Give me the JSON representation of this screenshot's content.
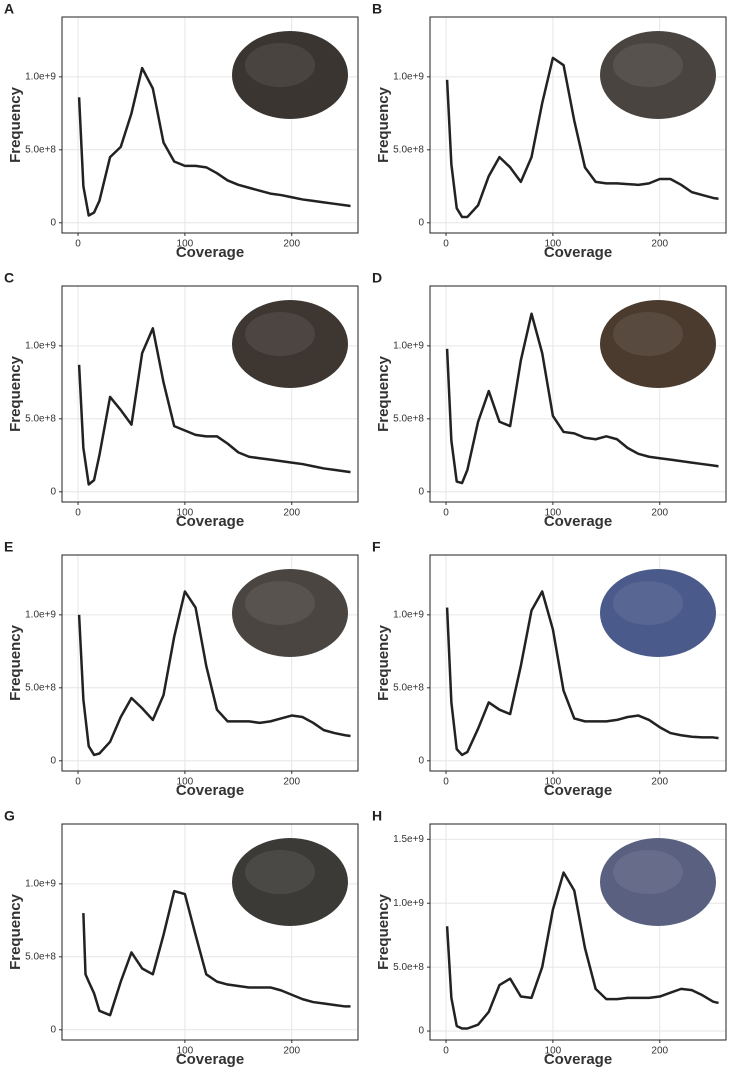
{
  "chart_data": [
    {
      "type": "line",
      "panel": "A",
      "xlabel": "Coverage",
      "ylabel": "Frequency",
      "color": "#222222",
      "grid": true,
      "x": [
        1,
        5,
        10,
        15,
        20,
        30,
        40,
        50,
        60,
        70,
        80,
        90,
        100,
        110,
        120,
        130,
        140,
        150,
        160,
        170,
        180,
        190,
        200,
        210,
        220,
        230,
        240,
        250,
        255
      ],
      "values": [
        860000000.0,
        250000000.0,
        50000000.0,
        70000000.0,
        150000000.0,
        450000000.0,
        520000000.0,
        750000000.0,
        1060000000.0,
        920000000.0,
        550000000.0,
        420000000.0,
        390000000.0,
        390000000.0,
        380000000.0,
        340000000.0,
        290000000.0,
        260000000.0,
        240000000.0,
        220000000.0,
        200000000.0,
        190000000.0,
        175000000.0,
        160000000.0,
        150000000.0,
        140000000.0,
        130000000.0,
        120000000.0,
        115000000.0
      ],
      "xlim": [
        -15,
        262
      ],
      "ylim": [
        -70000000.0,
        1410000000.0
      ],
      "xticks": [
        0,
        100,
        200
      ],
      "yticks": [
        0,
        {
          "value": 500000000,
          "label": "5.0e+8"
        },
        {
          "value": 1000000000,
          "label": "1.0e+9"
        }
      ]
    },
    {
      "type": "line",
      "panel": "B",
      "xlabel": "Coverage",
      "ylabel": "Frequency",
      "color": "#222222",
      "grid": true,
      "x": [
        1,
        5,
        10,
        15,
        20,
        30,
        40,
        50,
        60,
        70,
        80,
        90,
        100,
        110,
        120,
        130,
        140,
        150,
        160,
        170,
        180,
        190,
        200,
        210,
        220,
        230,
        240,
        250,
        255
      ],
      "values": [
        980000000.0,
        400000000.0,
        100000000.0,
        40000000.0,
        40000000.0,
        120000000.0,
        320000000.0,
        450000000.0,
        380000000.0,
        280000000.0,
        450000000.0,
        820000000.0,
        1130000000.0,
        1080000000.0,
        700000000.0,
        380000000.0,
        280000000.0,
        270000000.0,
        270000000.0,
        265000000.0,
        260000000.0,
        270000000.0,
        300000000.0,
        300000000.0,
        260000000.0,
        210000000.0,
        190000000.0,
        170000000.0,
        165000000.0
      ],
      "xlim": [
        -15,
        262
      ],
      "ylim": [
        -70000000.0,
        1410000000.0
      ],
      "xticks": [
        0,
        100,
        200
      ],
      "yticks": [
        0,
        {
          "value": 500000000,
          "label": "5.0e+8"
        },
        {
          "value": 1000000000,
          "label": "1.0e+9"
        }
      ]
    },
    {
      "type": "line",
      "panel": "C",
      "xlabel": "Coverage",
      "ylabel": "Frequency",
      "color": "#222222",
      "grid": true,
      "x": [
        1,
        5,
        10,
        15,
        20,
        30,
        40,
        50,
        60,
        70,
        80,
        90,
        100,
        110,
        120,
        130,
        140,
        150,
        160,
        170,
        180,
        190,
        200,
        210,
        220,
        230,
        240,
        250,
        255
      ],
      "values": [
        870000000.0,
        300000000.0,
        50000000.0,
        80000000.0,
        250000000.0,
        650000000.0,
        560000000.0,
        460000000.0,
        950000000.0,
        1120000000.0,
        750000000.0,
        450000000.0,
        420000000.0,
        390000000.0,
        380000000.0,
        380000000.0,
        330000000.0,
        270000000.0,
        240000000.0,
        230000000.0,
        220000000.0,
        210000000.0,
        200000000.0,
        190000000.0,
        175000000.0,
        160000000.0,
        150000000.0,
        140000000.0,
        135000000.0
      ],
      "xlim": [
        -15,
        262
      ],
      "ylim": [
        -70000000.0,
        1410000000.0
      ],
      "xticks": [
        0,
        100,
        200
      ],
      "yticks": [
        0,
        {
          "value": 500000000,
          "label": "5.0e+8"
        },
        {
          "value": 1000000000,
          "label": "1.0e+9"
        }
      ]
    },
    {
      "type": "line",
      "panel": "D",
      "xlabel": "Coverage",
      "ylabel": "Frequency",
      "color": "#222222",
      "grid": true,
      "x": [
        1,
        5,
        10,
        15,
        20,
        30,
        40,
        50,
        60,
        70,
        80,
        90,
        100,
        110,
        120,
        130,
        140,
        150,
        160,
        170,
        180,
        190,
        200,
        210,
        220,
        230,
        240,
        250,
        255
      ],
      "values": [
        980000000.0,
        350000000.0,
        70000000.0,
        60000000.0,
        150000000.0,
        480000000.0,
        690000000.0,
        480000000.0,
        450000000.0,
        900000000.0,
        1220000000.0,
        950000000.0,
        520000000.0,
        410000000.0,
        400000000.0,
        370000000.0,
        360000000.0,
        380000000.0,
        360000000.0,
        300000000.0,
        260000000.0,
        240000000.0,
        230000000.0,
        220000000.0,
        210000000.0,
        200000000.0,
        190000000.0,
        180000000.0,
        175000000.0
      ],
      "xlim": [
        -15,
        262
      ],
      "ylim": [
        -70000000.0,
        1410000000.0
      ],
      "xticks": [
        0,
        100,
        200
      ],
      "yticks": [
        0,
        {
          "value": 500000000,
          "label": "5.0e+8"
        },
        {
          "value": 1000000000,
          "label": "1.0e+9"
        }
      ]
    },
    {
      "type": "line",
      "panel": "E",
      "xlabel": "Coverage",
      "ylabel": "Frequency",
      "color": "#222222",
      "grid": true,
      "x": [
        1,
        5,
        10,
        15,
        20,
        30,
        40,
        50,
        60,
        70,
        80,
        90,
        100,
        110,
        120,
        130,
        140,
        150,
        160,
        170,
        180,
        190,
        200,
        210,
        220,
        230,
        240,
        250,
        255
      ],
      "values": [
        1000000000.0,
        420000000.0,
        100000000.0,
        40000000.0,
        50000000.0,
        130000000.0,
        300000000.0,
        430000000.0,
        360000000.0,
        280000000.0,
        450000000.0,
        850000000.0,
        1160000000.0,
        1050000000.0,
        650000000.0,
        350000000.0,
        270000000.0,
        270000000.0,
        270000000.0,
        260000000.0,
        270000000.0,
        290000000.0,
        310000000.0,
        300000000.0,
        260000000.0,
        210000000.0,
        190000000.0,
        175000000.0,
        170000000.0
      ],
      "xlim": [
        -15,
        262
      ],
      "ylim": [
        -70000000.0,
        1410000000.0
      ],
      "xticks": [
        0,
        100,
        200
      ],
      "yticks": [
        0,
        {
          "value": 500000000,
          "label": "5.0e+8"
        },
        {
          "value": 1000000000,
          "label": "1.0e+9"
        }
      ]
    },
    {
      "type": "line",
      "panel": "F",
      "xlabel": "Coverage",
      "ylabel": "Frequency",
      "color": "#222222",
      "grid": true,
      "x": [
        1,
        5,
        10,
        15,
        20,
        30,
        40,
        50,
        60,
        70,
        80,
        90,
        100,
        110,
        120,
        130,
        140,
        150,
        160,
        170,
        180,
        190,
        200,
        210,
        220,
        230,
        240,
        250,
        255
      ],
      "values": [
        1050000000.0,
        400000000.0,
        80000000.0,
        40000000.0,
        60000000.0,
        220000000.0,
        400000000.0,
        350000000.0,
        320000000.0,
        650000000.0,
        1030000000.0,
        1160000000.0,
        900000000.0,
        480000000.0,
        290000000.0,
        270000000.0,
        270000000.0,
        270000000.0,
        280000000.0,
        300000000.0,
        310000000.0,
        280000000.0,
        230000000.0,
        190000000.0,
        175000000.0,
        165000000.0,
        160000000.0,
        160000000.0,
        155000000.0
      ],
      "xlim": [
        -15,
        262
      ],
      "ylim": [
        -70000000.0,
        1410000000.0
      ],
      "xticks": [
        0,
        100,
        200
      ],
      "yticks": [
        0,
        {
          "value": 500000000,
          "label": "5.0e+8"
        },
        {
          "value": 1000000000,
          "label": "1.0e+9"
        }
      ]
    },
    {
      "type": "line",
      "panel": "G",
      "xlabel": "Coverage",
      "ylabel": "Frequency",
      "color": "#222222",
      "grid": true,
      "x": [
        5,
        7,
        10,
        15,
        20,
        30,
        40,
        50,
        60,
        70,
        80,
        90,
        100,
        110,
        120,
        130,
        140,
        150,
        160,
        170,
        180,
        190,
        200,
        210,
        220,
        230,
        240,
        250,
        255
      ],
      "values": [
        800000000.0,
        380000000.0,
        330000000.0,
        250000000.0,
        130000000.0,
        100000000.0,
        330000000.0,
        530000000.0,
        420000000.0,
        380000000.0,
        650000000.0,
        950000000.0,
        930000000.0,
        650000000.0,
        380000000.0,
        330000000.0,
        310000000.0,
        300000000.0,
        290000000.0,
        290000000.0,
        290000000.0,
        270000000.0,
        240000000.0,
        210000000.0,
        190000000.0,
        180000000.0,
        170000000.0,
        160000000.0,
        160000000.0
      ],
      "xlim": [
        -15,
        262
      ],
      "ylim": [
        -70000000.0,
        1410000000.0
      ],
      "xticks": [
        100,
        200
      ],
      "yticks": [
        0,
        {
          "value": 500000000,
          "label": "5.0e+8"
        },
        {
          "value": 1000000000,
          "label": "1.0e+9"
        }
      ]
    },
    {
      "type": "line",
      "panel": "H",
      "xlabel": "Coverage",
      "ylabel": "Frequency",
      "color": "#222222",
      "grid": true,
      "x": [
        1,
        5,
        10,
        15,
        20,
        30,
        40,
        50,
        60,
        70,
        80,
        90,
        100,
        110,
        120,
        130,
        140,
        150,
        160,
        170,
        180,
        190,
        200,
        210,
        220,
        230,
        240,
        250,
        255
      ],
      "values": [
        820000000.0,
        260000000.0,
        40000000.0,
        20000000.0,
        20000000.0,
        50000000.0,
        150000000.0,
        360000000.0,
        410000000.0,
        270000000.0,
        260000000.0,
        500000000.0,
        950000000.0,
        1240000000.0,
        1100000000.0,
        650000000.0,
        330000000.0,
        250000000.0,
        250000000.0,
        260000000.0,
        260000000.0,
        260000000.0,
        270000000.0,
        300000000.0,
        330000000.0,
        320000000.0,
        280000000.0,
        230000000.0,
        220000000.0
      ],
      "xlim": [
        -15,
        262
      ],
      "ylim": [
        -70000000.0,
        1620000000.0
      ],
      "xticks": [
        0,
        100,
        200
      ],
      "yticks": [
        0,
        {
          "value": 500000000,
          "label": "5.0e+8"
        },
        {
          "value": 1000000000,
          "label": "1.0e+9"
        },
        {
          "value": 1500000000,
          "label": "1.5e+9"
        }
      ]
    }
  ]
}
